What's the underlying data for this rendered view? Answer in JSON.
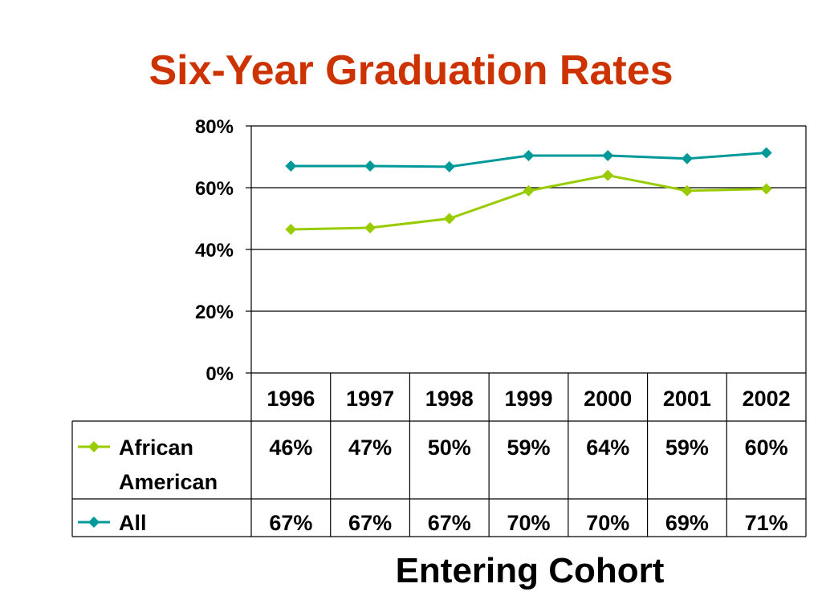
{
  "slide": {
    "title": "Six-Year Graduation Rates"
  },
  "colors": {
    "title": "#cc3300",
    "african_american": "#99cc00",
    "all": "#009999"
  },
  "chart_data": {
    "type": "line",
    "title": "Six-Year Graduation Rates",
    "xlabel": "Entering Cohort",
    "ylabel": "",
    "ylim": [
      0,
      80
    ],
    "yticks": [
      "0%",
      "20%",
      "40%",
      "60%",
      "80%"
    ],
    "ytick_values": [
      0,
      20,
      40,
      60,
      80
    ],
    "grid": true,
    "legend": "data-table-left",
    "categories": [
      "1996",
      "1997",
      "1998",
      "1999",
      "2000",
      "2001",
      "2002"
    ],
    "series": [
      {
        "name_lines": [
          "African",
          "American"
        ],
        "values": [
          46.5,
          47,
          50,
          59,
          64,
          59,
          59.6
        ],
        "labels": [
          "46%",
          "47%",
          "50%",
          "59%",
          "64%",
          "59%",
          "60%"
        ],
        "color": "#99cc00",
        "marker": "diamond"
      },
      {
        "name_lines": [
          "All"
        ],
        "values": [
          67,
          67,
          66.8,
          70.4,
          70.4,
          69.4,
          71.3
        ],
        "labels": [
          "67%",
          "67%",
          "67%",
          "70%",
          "70%",
          "69%",
          "71%"
        ],
        "color": "#009999",
        "marker": "diamond"
      }
    ]
  }
}
